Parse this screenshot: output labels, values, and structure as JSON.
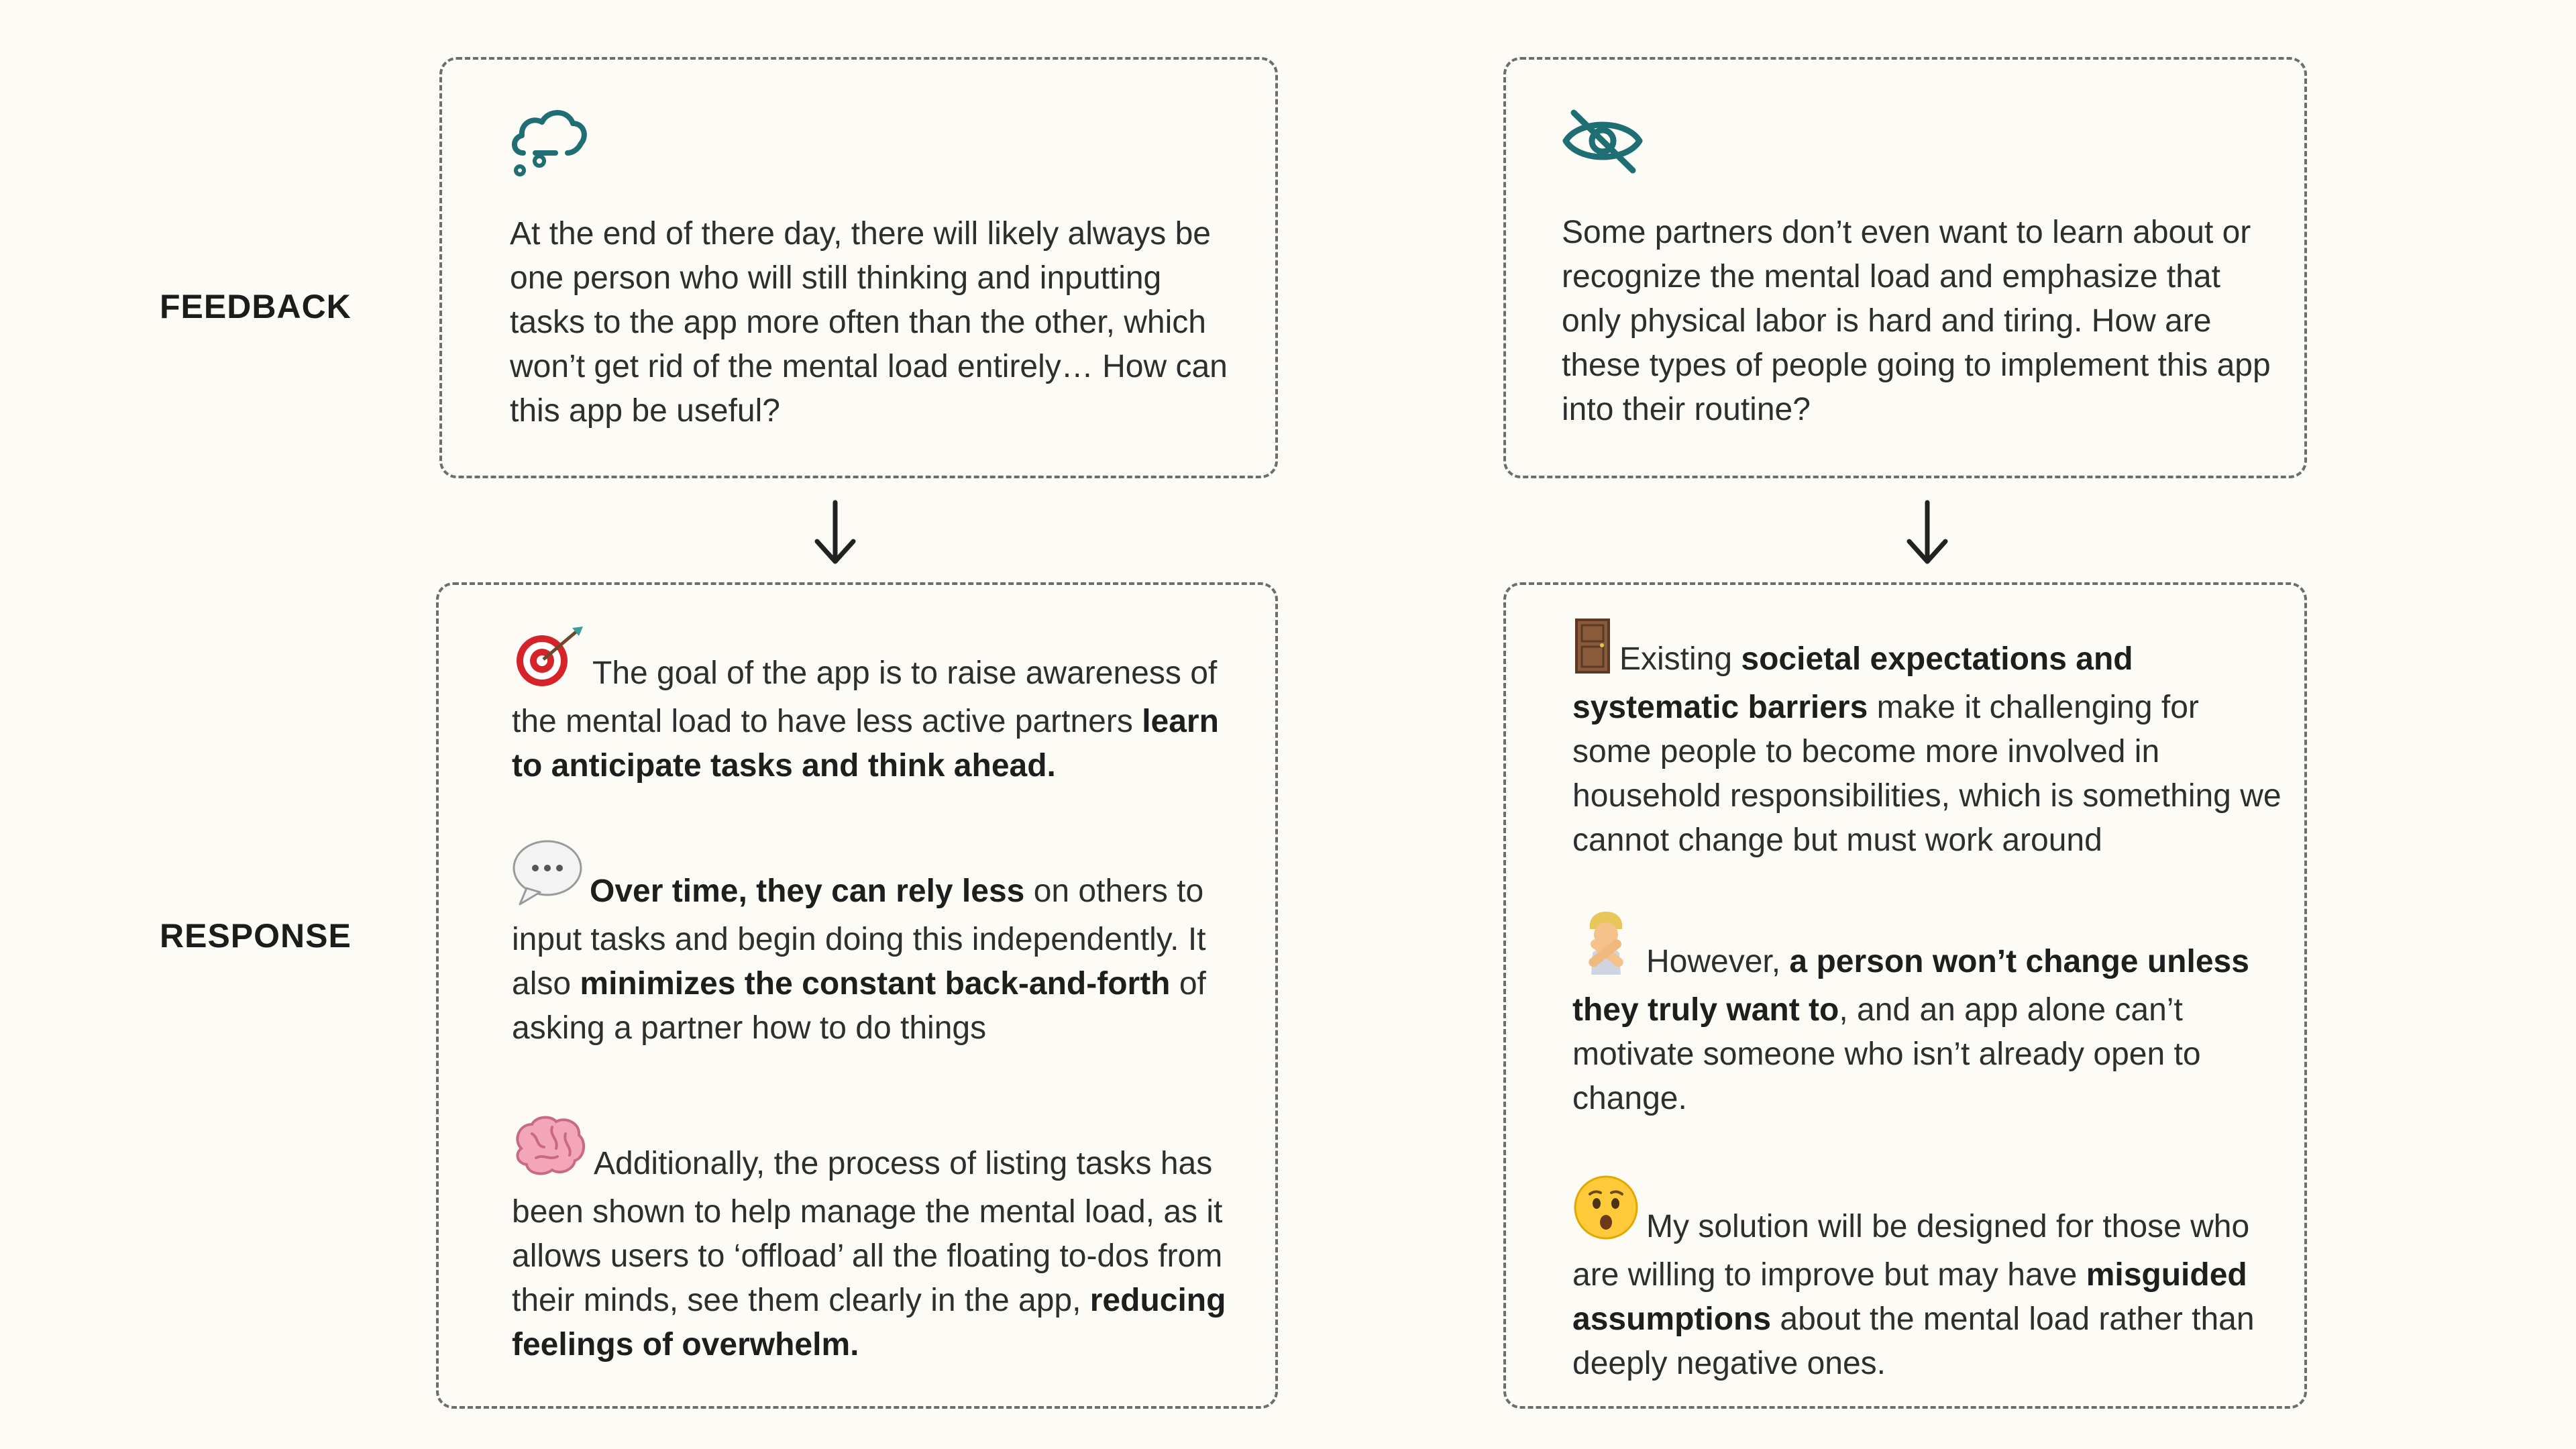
{
  "labels": {
    "feedback": "FEEDBACK",
    "response": "RESPONSE"
  },
  "colors": {
    "background": "#fcfbf6",
    "accent_teal": "#1f6e73",
    "dashed_border": "#6d6d6d",
    "text": "#2e2e2e"
  },
  "feedback": [
    {
      "icon": "cloud-thought-icon",
      "text": "At the end of there day, there will likely always be one person who will still thinking and inputting tasks to the app more often than the other, which won’t get rid of the mental load entirely… How can this app be useful?"
    },
    {
      "icon": "eye-off-icon",
      "text": "Some partners don’t even want to learn about or recognize the mental load and emphasize that only physical labor is hard and tiring. How are these types of people going to implement this app into their routine?"
    }
  ],
  "response_left": [
    {
      "icon": "target-emoji-icon",
      "parts": [
        {
          "t": "The goal of the app is to raise awareness of the mental load to have less active partners ",
          "b": false
        },
        {
          "t": "learn to anticipate tasks and think ahead.",
          "b": true
        }
      ]
    },
    {
      "icon": "speech-bubble-emoji-icon",
      "parts": [
        {
          "t": "Over time, they can rely less",
          "b": true
        },
        {
          "t": " on others to input tasks and begin doing this independently. It also ",
          "b": false
        },
        {
          "t": "minimizes the constant back-and-forth",
          "b": true
        },
        {
          "t": " of asking a partner how to do things",
          "b": false
        }
      ]
    },
    {
      "icon": "brain-emoji-icon",
      "parts": [
        {
          "t": "Additionally, the process of listing tasks has been shown to help manage the mental load, as it allows users to ‘offload’ all the floating to-dos from their minds, see them clearly in the app, ",
          "b": false
        },
        {
          "t": "reducing feelings of overwhelm.",
          "b": true
        }
      ]
    }
  ],
  "response_right": [
    {
      "icon": "door-emoji-icon",
      "parts": [
        {
          "t": "Existing ",
          "b": false
        },
        {
          "t": "societal expectations and systematic barriers",
          "b": true
        },
        {
          "t": " make it challenging for some people to become more involved in household responsibilities, which is something we cannot change but must work around",
          "b": false
        }
      ]
    },
    {
      "icon": "person-gesturing-no-emoji-icon",
      "parts": [
        {
          "t": "However, ",
          "b": false
        },
        {
          "t": "a person won’t change unless they truly want to",
          "b": true
        },
        {
          "t": ", and an app alone can’t motivate someone who isn’t already open to change.",
          "b": false
        }
      ]
    },
    {
      "icon": "hushed-face-emoji-icon",
      "parts": [
        {
          "t": "My solution will be designed for those who are willing to improve but may have ",
          "b": false
        },
        {
          "t": "misguided assumptions",
          "b": true
        },
        {
          "t": " about the mental load rather than deeply negative ones.",
          "b": false
        }
      ]
    }
  ]
}
